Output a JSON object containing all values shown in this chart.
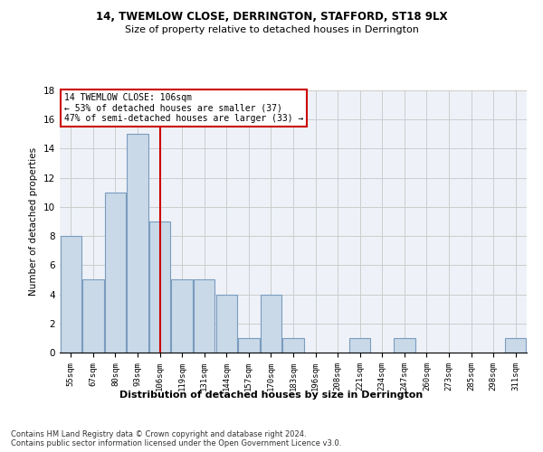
{
  "title1": "14, TWEMLOW CLOSE, DERRINGTON, STAFFORD, ST18 9LX",
  "title2": "Size of property relative to detached houses in Derrington",
  "xlabel": "Distribution of detached houses by size in Derrington",
  "ylabel": "Number of detached properties",
  "bin_labels": [
    "55sqm",
    "67sqm",
    "80sqm",
    "93sqm",
    "106sqm",
    "119sqm",
    "131sqm",
    "144sqm",
    "157sqm",
    "170sqm",
    "183sqm",
    "196sqm",
    "208sqm",
    "221sqm",
    "234sqm",
    "247sqm",
    "260sqm",
    "273sqm",
    "285sqm",
    "298sqm",
    "311sqm"
  ],
  "values": [
    8,
    5,
    11,
    15,
    9,
    5,
    5,
    4,
    1,
    4,
    1,
    0,
    0,
    1,
    0,
    1,
    0,
    0,
    0,
    0,
    1
  ],
  "bar_color": "#c9d9e8",
  "bar_edge_color": "#7a9cbf",
  "vline_x": 4,
  "vline_color": "#cc0000",
  "annotation_text": "14 TWEMLOW CLOSE: 106sqm\n← 53% of detached houses are smaller (37)\n47% of semi-detached houses are larger (33) →",
  "annotation_box_color": "#cc0000",
  "ylim": [
    0,
    18
  ],
  "yticks": [
    0,
    2,
    4,
    6,
    8,
    10,
    12,
    14,
    16,
    18
  ],
  "grid_color": "#cccccc",
  "background_color": "#eef2f8",
  "footer": "Contains HM Land Registry data © Crown copyright and database right 2024.\nContains public sector information licensed under the Open Government Licence v3.0."
}
